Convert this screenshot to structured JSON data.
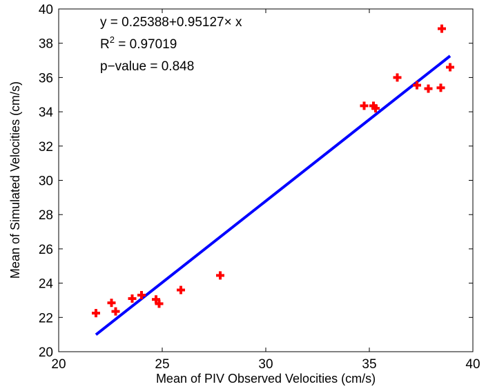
{
  "chart_data": {
    "type": "scatter",
    "title": "",
    "xlabel": "Mean of PIV Observed Velocities (cm/s)",
    "ylabel": "Mean of Simulated Velocities (cm/s)",
    "xlim": [
      20,
      40
    ],
    "ylim": [
      20,
      40
    ],
    "xticks": [
      "20",
      "25",
      "30",
      "35",
      "40"
    ],
    "yticks": [
      "20",
      "22",
      "24",
      "26",
      "28",
      "30",
      "32",
      "34",
      "36",
      "38",
      "40"
    ],
    "grid": false,
    "annotations": {
      "equation": "y = 0.25388+0.95127× x",
      "r2_prefix": "R",
      "r2_sup": "2",
      "r2_suffix": " = 0.97019",
      "pvalue": "p−value = 0.848"
    },
    "series": [
      {
        "marker": "plus",
        "color": "#ff0000",
        "points": [
          [
            21.8,
            22.25
          ],
          [
            22.55,
            22.85
          ],
          [
            22.75,
            22.35
          ],
          [
            23.55,
            23.1
          ],
          [
            24.0,
            23.3
          ],
          [
            24.7,
            23.05
          ],
          [
            24.85,
            22.8
          ],
          [
            25.9,
            23.6
          ],
          [
            27.8,
            24.45
          ],
          [
            34.75,
            34.35
          ],
          [
            35.2,
            34.35
          ],
          [
            35.3,
            34.2
          ],
          [
            36.35,
            36.0
          ],
          [
            37.3,
            35.55
          ],
          [
            37.85,
            35.35
          ],
          [
            38.45,
            35.4
          ],
          [
            38.5,
            38.85
          ],
          [
            38.9,
            36.6
          ]
        ]
      },
      {
        "type": "line",
        "color": "#0000ff",
        "x": [
          21.8,
          38.9
        ]
      }
    ],
    "fit": {
      "intercept": 0.25388,
      "slope": 0.95127
    }
  }
}
